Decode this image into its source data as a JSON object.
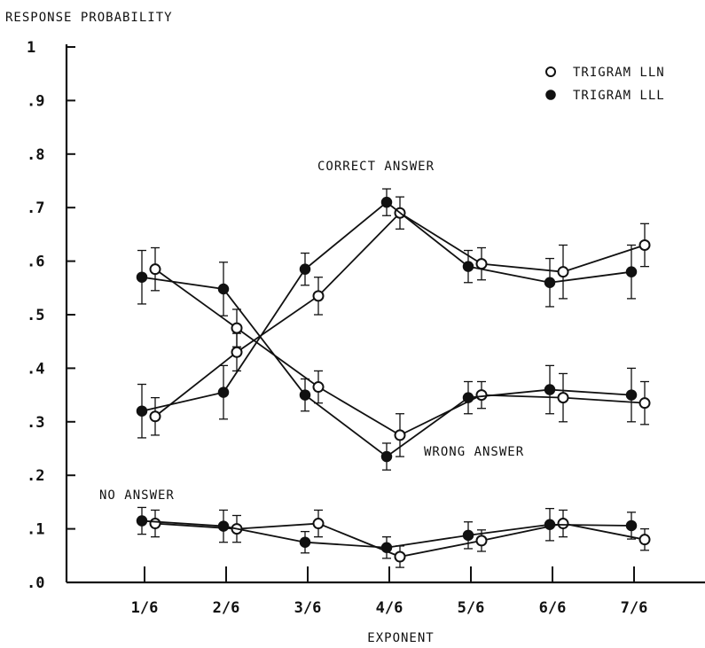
{
  "chart_data": {
    "type": "line",
    "title": "",
    "ylabel": "RESPONSE PROBABILITY",
    "xlabel": "EXPONENT",
    "categories": [
      "1/6",
      "2/6",
      "3/6",
      "4/6",
      "5/6",
      "6/6",
      "7/6"
    ],
    "ylim": [
      0,
      1
    ],
    "yticks": [
      {
        "value": 0,
        "label": ".0"
      },
      {
        "value": 0.1,
        "label": ".1"
      },
      {
        "value": 0.2,
        "label": ".2"
      },
      {
        "value": 0.3,
        "label": ".3"
      },
      {
        "value": 0.4,
        "label": ".4"
      },
      {
        "value": 0.5,
        "label": ".5"
      },
      {
        "value": 0.6,
        "label": ".6"
      },
      {
        "value": 0.7,
        "label": ".7"
      },
      {
        "value": 0.8,
        "label": ".8"
      },
      {
        "value": 0.9,
        "label": ".9"
      },
      {
        "value": 1,
        "label": "1"
      }
    ],
    "legend": {
      "position": "top-right",
      "entries": [
        {
          "label": "TRIGRAM LLN",
          "marker": "open-circle"
        },
        {
          "label": "TRIGRAM LLL",
          "marker": "filled-circle"
        }
      ]
    },
    "annotations": [
      "CORRECT ANSWER",
      "WRONG ANSWER",
      "NO ANSWER"
    ],
    "series": [
      {
        "name": "TRIGRAM LLN",
        "group": "CORRECT ANSWER",
        "marker": "open",
        "values": [
          0.31,
          0.43,
          0.535,
          0.69,
          0.595,
          0.58,
          0.63
        ],
        "errors": [
          0.035,
          0.035,
          0.035,
          0.03,
          0.03,
          0.05,
          0.04
        ]
      },
      {
        "name": "TRIGRAM LLL",
        "group": "CORRECT ANSWER",
        "marker": "filled",
        "values": [
          0.32,
          0.355,
          0.585,
          0.71,
          0.59,
          0.56,
          0.58
        ],
        "errors": [
          0.05,
          0.05,
          0.03,
          0.025,
          0.03,
          0.045,
          0.05
        ]
      },
      {
        "name": "TRIGRAM LLN",
        "group": "WRONG ANSWER",
        "marker": "open",
        "values": [
          0.585,
          0.475,
          0.365,
          0.275,
          0.35,
          0.345,
          0.335
        ],
        "errors": [
          0.04,
          0.035,
          0.03,
          0.04,
          0.025,
          0.045,
          0.04
        ]
      },
      {
        "name": "TRIGRAM LLL",
        "group": "WRONG ANSWER",
        "marker": "filled",
        "values": [
          0.57,
          0.548,
          0.35,
          0.235,
          0.345,
          0.36,
          0.35
        ],
        "errors": [
          0.05,
          0.05,
          0.03,
          0.025,
          0.03,
          0.045,
          0.05
        ]
      },
      {
        "name": "TRIGRAM LLN",
        "group": "NO ANSWER",
        "marker": "open",
        "values": [
          0.11,
          0.1,
          0.11,
          0.048,
          0.078,
          0.11,
          0.08
        ],
        "errors": [
          0.025,
          0.025,
          0.025,
          0.02,
          0.02,
          0.025,
          0.02
        ]
      },
      {
        "name": "TRIGRAM LLL",
        "group": "NO ANSWER",
        "marker": "filled",
        "values": [
          0.115,
          0.105,
          0.075,
          0.065,
          0.088,
          0.108,
          0.106
        ],
        "errors": [
          0.025,
          0.03,
          0.02,
          0.02,
          0.025,
          0.03,
          0.025
        ]
      }
    ]
  }
}
